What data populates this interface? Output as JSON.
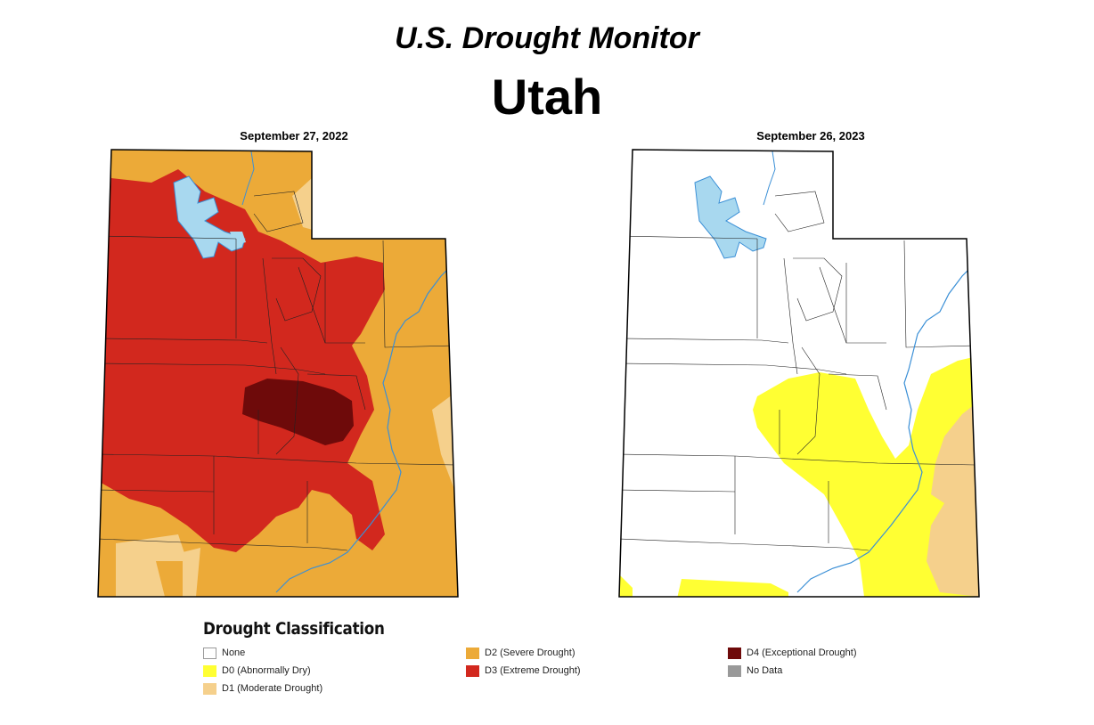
{
  "title": "U.S. Drought Monitor",
  "subtitle": "Utah",
  "maps": [
    {
      "date": "September 27, 2022"
    },
    {
      "date": "September 26, 2023"
    }
  ],
  "legend": {
    "title": "Drought Classification",
    "items": [
      {
        "label": "None",
        "color": "#ffffff"
      },
      {
        "label": "D0 (Abnormally Dry)",
        "color": "#ffff33"
      },
      {
        "label": "D1 (Moderate Drought)",
        "color": "#f5d08c"
      },
      {
        "label": "D2 (Severe Drought)",
        "color": "#ecaa38"
      },
      {
        "label": "D3 (Extreme Drought)",
        "color": "#d2281e"
      },
      {
        "label": "D4 (Exceptional Drought)",
        "color": "#6e0a0a"
      },
      {
        "label": "No Data",
        "color": "#999999"
      }
    ]
  },
  "colors": {
    "water": "#a8d8ef",
    "river": "#3a8fd6"
  }
}
